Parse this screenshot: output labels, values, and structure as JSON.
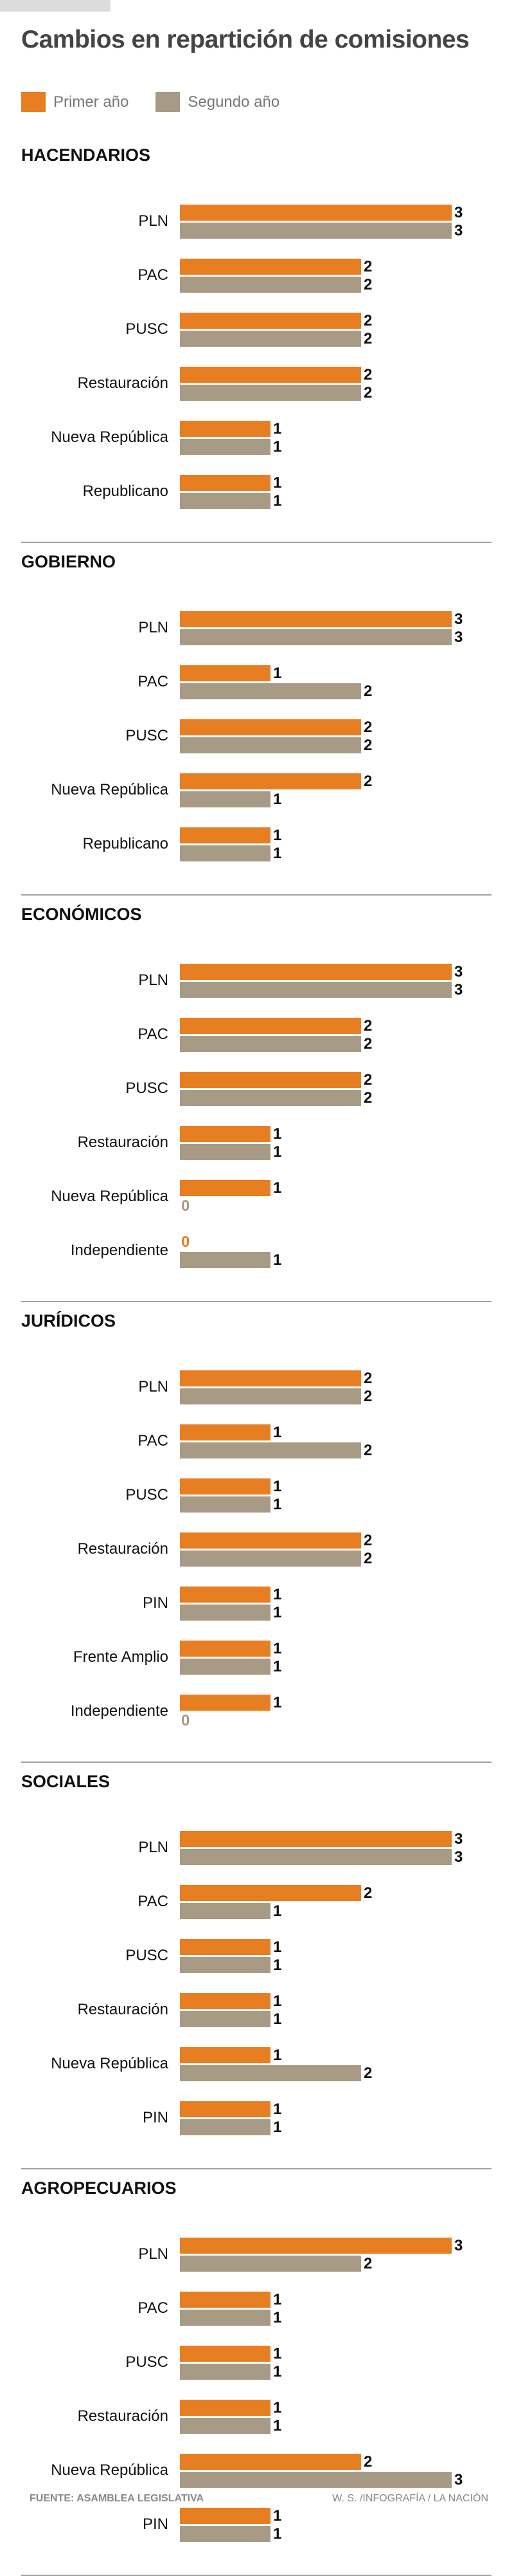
{
  "chart_data": {
    "type": "bar",
    "orientation": "horizontal",
    "title": "Cambios en repartición de comisiones",
    "legend": [
      "Primer año",
      "Segundo año"
    ],
    "colors": {
      "primer": "#e87e22",
      "segundo": "#a89b86"
    },
    "legend_position": "top-left",
    "panels": [
      {
        "title": "HACENDARIOS",
        "categories": [
          "PLN",
          "PAC",
          "PUSC",
          "Restauración",
          "Nueva República",
          "Republicano"
        ],
        "series": [
          {
            "name": "Primer año",
            "values": [
              3,
              2,
              2,
              2,
              1,
              1
            ]
          },
          {
            "name": "Segundo año",
            "values": [
              3,
              2,
              2,
              2,
              1,
              1
            ]
          }
        ]
      },
      {
        "title": "GOBIERNO",
        "categories": [
          "PLN",
          "PAC",
          "PUSC",
          "Nueva República",
          "Republicano"
        ],
        "series": [
          {
            "name": "Primer año",
            "values": [
              3,
              1,
              2,
              2,
              1
            ]
          },
          {
            "name": "Segundo año",
            "values": [
              3,
              2,
              2,
              1,
              1
            ]
          }
        ]
      },
      {
        "title": "ECONÓMICOS",
        "categories": [
          "PLN",
          "PAC",
          "PUSC",
          "Restauración",
          "Nueva República",
          "Independiente"
        ],
        "series": [
          {
            "name": "Primer año",
            "values": [
              3,
              2,
              2,
              1,
              1,
              0
            ]
          },
          {
            "name": "Segundo año",
            "values": [
              3,
              2,
              2,
              1,
              0,
              1
            ]
          }
        ]
      },
      {
        "title": "JURÍDICOS",
        "categories": [
          "PLN",
          "PAC",
          "PUSC",
          "Restauración",
          "PIN",
          "Frente Amplio",
          "Independiente"
        ],
        "series": [
          {
            "name": "Primer año",
            "values": [
              2,
              1,
              1,
              2,
              1,
              1,
              1
            ]
          },
          {
            "name": "Segundo año",
            "values": [
              2,
              2,
              1,
              2,
              1,
              1,
              0
            ]
          }
        ]
      },
      {
        "title": "SOCIALES",
        "categories": [
          "PLN",
          "PAC",
          "PUSC",
          "Restauración",
          "Nueva República",
          "PIN"
        ],
        "series": [
          {
            "name": "Primer año",
            "values": [
              3,
              2,
              1,
              1,
              1,
              1
            ]
          },
          {
            "name": "Segundo año",
            "values": [
              3,
              1,
              1,
              1,
              2,
              1
            ]
          }
        ]
      },
      {
        "title": "AGROPECUARIOS",
        "categories": [
          "PLN",
          "PAC",
          "PUSC",
          "Restauración",
          "Nueva República",
          "PIN"
        ],
        "series": [
          {
            "name": "Primer año",
            "values": [
              3,
              1,
              1,
              1,
              2,
              1
            ]
          },
          {
            "name": "Segundo año",
            "values": [
              2,
              1,
              1,
              1,
              3,
              1
            ]
          }
        ]
      }
    ],
    "xlim": [
      0,
      3
    ]
  },
  "footer": {
    "source": "FUENTE: ASAMBLEA LEGISLATIVA",
    "credit": "W. S. /INFOGRAFÍA / LA NACIÓN"
  }
}
